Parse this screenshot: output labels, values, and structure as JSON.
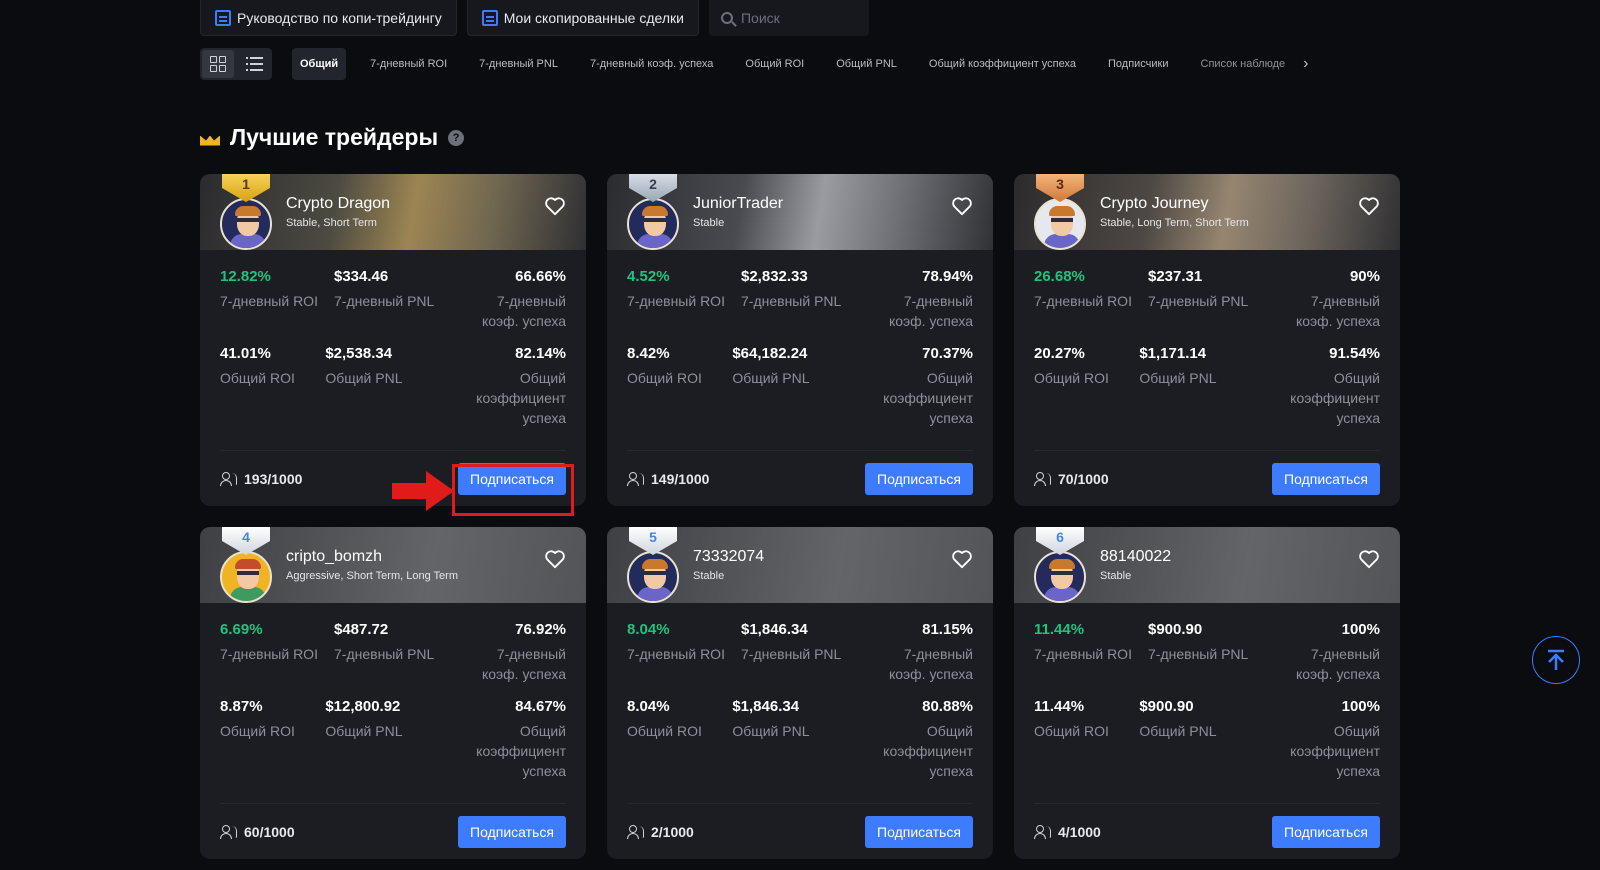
{
  "top_bar": {
    "guide_label": "Руководство по копи-трейдингу",
    "copied_label": "Мои скопированные сделки",
    "search_placeholder": "Поиск"
  },
  "filter_tabs": [
    "Общий",
    "7-дневный ROI",
    "7-дневный PNL",
    "7-дневный коэф. успеха",
    "Общий ROI",
    "Общий PNL",
    "Общий коэффициент успеха",
    "Подписчики",
    "Список наблюде"
  ],
  "active_tab": "Общий",
  "section": {
    "title": "Лучшие трейдеры"
  },
  "labels": {
    "roi7": "7-дневный ROI",
    "pnl7": "7-дневный PNL",
    "win7": "7-дневный коэф. успеха",
    "roi": "Общий ROI",
    "pnl": "Общий PNL",
    "win": "Общий коэффициент успеха",
    "subscribe": "Подписаться"
  },
  "traders": [
    {
      "rank": "1",
      "name": "Crypto Dragon",
      "tags": "Stable, Short Term",
      "roi7": "12.82%",
      "pnl7": "$334.46",
      "win7": "66.66%",
      "roi": "41.01%",
      "pnl": "$2,538.34",
      "win": "82.14%",
      "subscribers": "193/1000"
    },
    {
      "rank": "2",
      "name": "JuniorTrader",
      "tags": "Stable",
      "roi7": "4.52%",
      "pnl7": "$2,832.33",
      "win7": "78.94%",
      "roi": "8.42%",
      "pnl": "$64,182.24",
      "win": "70.37%",
      "subscribers": "149/1000"
    },
    {
      "rank": "3",
      "name": "Crypto Journey",
      "tags": "Stable, Long Term, Short Term",
      "roi7": "26.68%",
      "pnl7": "$237.31",
      "win7": "90%",
      "roi": "20.27%",
      "pnl": "$1,171.14",
      "win": "91.54%",
      "subscribers": "70/1000"
    },
    {
      "rank": "4",
      "name": "cripto_bomzh",
      "tags": "Aggressive, Short Term, Long Term",
      "roi7": "6.69%",
      "pnl7": "$487.72",
      "win7": "76.92%",
      "roi": "8.87%",
      "pnl": "$12,800.92",
      "win": "84.67%",
      "subscribers": "60/1000"
    },
    {
      "rank": "5",
      "name": "73332074",
      "tags": "Stable",
      "roi7": "8.04%",
      "pnl7": "$1,846.34",
      "win7": "81.15%",
      "roi": "8.04%",
      "pnl": "$1,846.34",
      "win": "80.88%",
      "subscribers": "2/1000"
    },
    {
      "rank": "6",
      "name": "88140022",
      "tags": "Stable",
      "roi7": "11.44%",
      "pnl7": "$900.90",
      "win7": "100%",
      "roi": "11.44%",
      "pnl": "$900.90",
      "win": "100%",
      "subscribers": "4/1000"
    }
  ],
  "colors": {
    "accent": "#3d7bff",
    "positive": "#1fc37f",
    "highlight": "#e11a1a"
  },
  "icons": [
    "document-icon",
    "search-icon",
    "grid-view-icon",
    "list-view-icon",
    "crown-icon",
    "help-icon",
    "heart-icon",
    "users-icon",
    "arrow-up-icon",
    "chevron-right-icon"
  ]
}
